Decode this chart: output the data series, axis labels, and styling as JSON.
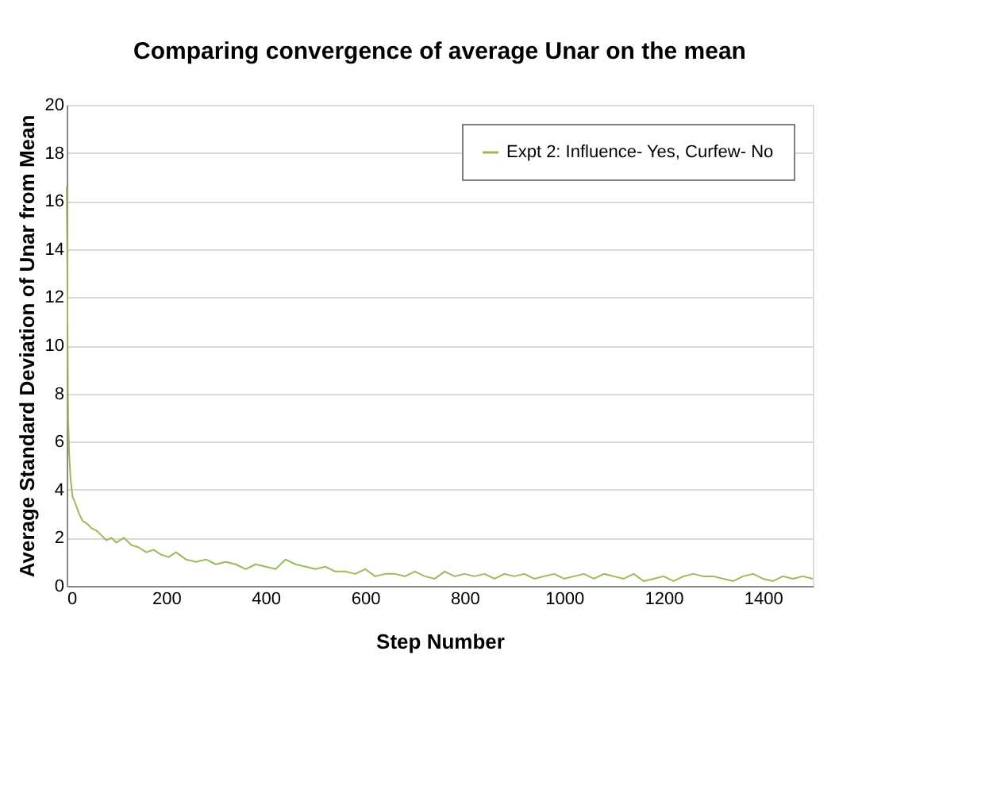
{
  "chart_data": {
    "type": "line",
    "title": "Comparing convergence of average Unar on the mean",
    "xlabel": "Step Number",
    "ylabel": "Average Standard Deviation of Unar from Mean",
    "xlim": [
      0,
      1500
    ],
    "xticks": [
      0,
      200,
      400,
      600,
      800,
      1000,
      1200,
      1400
    ],
    "ylim": [
      0,
      20
    ],
    "yticks": [
      0,
      2,
      4,
      6,
      8,
      10,
      12,
      14,
      16,
      18,
      20
    ],
    "grid": "y",
    "legend": "top right",
    "marker": "none",
    "line_style": "solid",
    "series": [
      {
        "name": "Expt 2: Influence- Yes, Curfew- No",
        "color": "#9bbb59",
        "x": [
          0,
          1,
          2,
          3,
          5,
          8,
          12,
          18,
          25,
          32,
          40,
          50,
          60,
          70,
          80,
          90,
          100,
          115,
          130,
          145,
          160,
          175,
          190,
          205,
          220,
          240,
          260,
          280,
          300,
          320,
          340,
          360,
          380,
          400,
          420,
          440,
          460,
          480,
          500,
          520,
          540,
          560,
          580,
          600,
          620,
          640,
          660,
          680,
          700,
          720,
          740,
          760,
          780,
          800,
          820,
          840,
          860,
          880,
          900,
          920,
          940,
          960,
          980,
          1000,
          1020,
          1040,
          1060,
          1080,
          1100,
          1120,
          1140,
          1160,
          1180,
          1200,
          1220,
          1240,
          1260,
          1280,
          1300,
          1320,
          1340,
          1360,
          1380,
          1400,
          1420,
          1440,
          1460,
          1480,
          1500
        ],
        "values": [
          16.6,
          14,
          10,
          7,
          5.5,
          4.4,
          3.7,
          3.4,
          3.0,
          2.7,
          2.6,
          2.4,
          2.3,
          2.1,
          1.9,
          2.0,
          1.8,
          2.0,
          1.7,
          1.6,
          1.4,
          1.5,
          1.3,
          1.2,
          1.4,
          1.1,
          1.0,
          1.1,
          0.9,
          1.0,
          0.9,
          0.7,
          0.9,
          0.8,
          0.7,
          1.1,
          0.9,
          0.8,
          0.7,
          0.8,
          0.6,
          0.6,
          0.5,
          0.7,
          0.4,
          0.5,
          0.5,
          0.4,
          0.6,
          0.4,
          0.3,
          0.6,
          0.4,
          0.5,
          0.4,
          0.5,
          0.3,
          0.5,
          0.4,
          0.5,
          0.3,
          0.4,
          0.5,
          0.3,
          0.4,
          0.5,
          0.3,
          0.5,
          0.4,
          0.3,
          0.5,
          0.2,
          0.3,
          0.4,
          0.2,
          0.4,
          0.5,
          0.4,
          0.4,
          0.3,
          0.2,
          0.4,
          0.5,
          0.3,
          0.2,
          0.4,
          0.3,
          0.4,
          0.3
        ]
      }
    ]
  }
}
